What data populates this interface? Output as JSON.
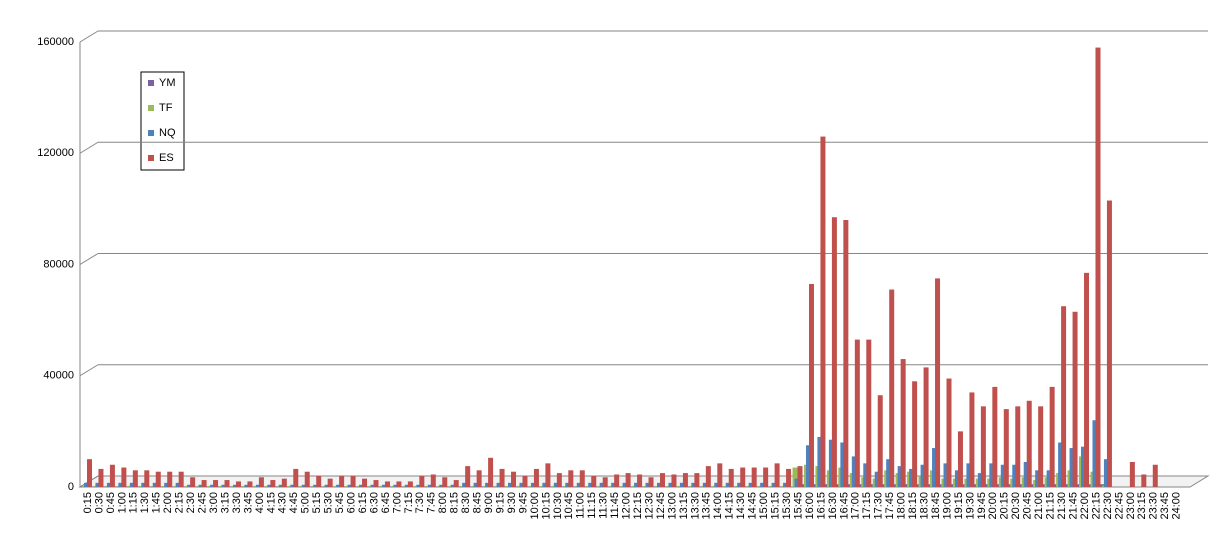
{
  "chart_data": {
    "type": "bar",
    "categories": [
      "0:15",
      "0:30",
      "0:45",
      "1:00",
      "1:15",
      "1:30",
      "1:45",
      "2:00",
      "2:15",
      "2:30",
      "2:45",
      "3:00",
      "3:15",
      "3:30",
      "3:45",
      "4:00",
      "4:15",
      "4:30",
      "4:45",
      "5:00",
      "5:15",
      "5:30",
      "5:45",
      "6:00",
      "6:15",
      "6:30",
      "6:45",
      "7:00",
      "7:15",
      "7:30",
      "7:45",
      "8:00",
      "8:15",
      "8:30",
      "8:45",
      "9:00",
      "9:15",
      "9:30",
      "9:45",
      "10:00",
      "10:15",
      "10:30",
      "10:45",
      "11:00",
      "11:15",
      "11:30",
      "11:45",
      "12:00",
      "12:15",
      "12:30",
      "12:45",
      "13:00",
      "13:15",
      "13:30",
      "13:45",
      "14:00",
      "14:15",
      "14:30",
      "14:45",
      "15:00",
      "15:15",
      "15:30",
      "15:45",
      "16:00",
      "16:15",
      "16:30",
      "16:45",
      "17:00",
      "17:15",
      "17:30",
      "17:45",
      "18:00",
      "18:15",
      "18:30",
      "18:45",
      "19:00",
      "19:15",
      "19:30",
      "19:45",
      "20:00",
      "20:15",
      "20:30",
      "20:45",
      "21:00",
      "21:15",
      "21:30",
      "21:45",
      "22:00",
      "22:15",
      "22:30",
      "22:45",
      "23:00",
      "23:15",
      "23:30",
      "23:45",
      "24:00"
    ],
    "series": [
      {
        "name": "YM",
        "color": "#7d60a0",
        "values": [
          200,
          200,
          200,
          200,
          200,
          200,
          200,
          200,
          200,
          200,
          200,
          200,
          200,
          200,
          200,
          200,
          200,
          200,
          200,
          200,
          200,
          200,
          200,
          200,
          200,
          200,
          200,
          200,
          200,
          200,
          200,
          200,
          200,
          200,
          200,
          200,
          200,
          200,
          200,
          200,
          200,
          200,
          200,
          200,
          200,
          200,
          200,
          200,
          200,
          200,
          200,
          200,
          200,
          200,
          200,
          200,
          200,
          200,
          200,
          200,
          200,
          200,
          200,
          1000,
          1000,
          1000,
          1000,
          1000,
          1000,
          1000,
          1000,
          1000,
          1000,
          1000,
          1000,
          1000,
          1000,
          1000,
          1000,
          1000,
          1000,
          1000,
          1000,
          1000,
          1000,
          1000,
          1000,
          1000,
          1000,
          1000,
          0,
          0,
          0,
          0,
          0,
          0
        ]
      },
      {
        "name": "TF",
        "color": "#9bbb59",
        "values": [
          400,
          400,
          400,
          400,
          400,
          400,
          400,
          400,
          400,
          400,
          400,
          400,
          400,
          400,
          400,
          400,
          400,
          400,
          400,
          400,
          400,
          400,
          400,
          400,
          400,
          400,
          400,
          400,
          400,
          400,
          400,
          400,
          400,
          400,
          400,
          400,
          400,
          400,
          400,
          400,
          400,
          400,
          400,
          400,
          400,
          400,
          400,
          400,
          400,
          400,
          400,
          400,
          400,
          400,
          400,
          400,
          400,
          400,
          400,
          400,
          400,
          400,
          7000,
          8000,
          7500,
          6000,
          7000,
          5000,
          3500,
          3000,
          6000,
          5000,
          5500,
          4000,
          6000,
          3000,
          3000,
          3000,
          3000,
          3000,
          3500,
          3000,
          3500,
          2500,
          3500,
          5000,
          6000,
          11000,
          5500,
          500,
          0,
          0,
          0,
          0,
          0,
          0
        ]
      },
      {
        "name": "NQ",
        "color": "#4f81bd",
        "values": [
          1500,
          1500,
          1500,
          1500,
          1500,
          1500,
          1500,
          1500,
          1500,
          800,
          800,
          800,
          800,
          800,
          800,
          800,
          800,
          800,
          800,
          800,
          800,
          800,
          800,
          800,
          800,
          800,
          800,
          800,
          800,
          800,
          800,
          800,
          800,
          1500,
          1500,
          1500,
          1500,
          1500,
          1500,
          1500,
          1500,
          1500,
          1500,
          1500,
          1500,
          1500,
          1500,
          1500,
          1500,
          1500,
          1500,
          1500,
          1500,
          1500,
          1500,
          1500,
          1500,
          1500,
          1500,
          1500,
          1500,
          1500,
          3000,
          15000,
          18000,
          17000,
          16000,
          11000,
          8500,
          5500,
          10000,
          7500,
          6500,
          8000,
          14000,
          8500,
          6000,
          8500,
          5000,
          8500,
          8000,
          8000,
          9000,
          6000,
          6000,
          16000,
          14000,
          14500,
          24000,
          10000,
          0,
          0,
          0,
          0,
          0,
          0
        ]
      },
      {
        "name": "ES",
        "color": "#c0504d",
        "values": [
          10000,
          6500,
          8000,
          7000,
          6000,
          6000,
          5500,
          5500,
          5500,
          3500,
          2500,
          2500,
          2500,
          2000,
          2000,
          3500,
          2500,
          3000,
          6500,
          5500,
          4000,
          3000,
          4000,
          4000,
          3000,
          2500,
          2000,
          2000,
          2000,
          4000,
          4500,
          3500,
          2500,
          7500,
          6000,
          10500,
          6500,
          5500,
          4000,
          6500,
          8500,
          5000,
          6000,
          6000,
          4000,
          3500,
          4500,
          5000,
          4500,
          3500,
          5000,
          4500,
          5000,
          5000,
          7500,
          8500,
          6500,
          7000,
          7000,
          7000,
          8500,
          6500,
          7500,
          73000,
          126000,
          97000,
          96000,
          53000,
          53000,
          33000,
          71000,
          46000,
          38000,
          43000,
          75000,
          39000,
          20000,
          34000,
          29000,
          36000,
          28000,
          29000,
          31000,
          29000,
          36000,
          65000,
          63000,
          77000,
          158000,
          103000,
          0,
          9000,
          4500,
          8000,
          0,
          0
        ]
      }
    ],
    "ylim": [
      0,
      160000
    ],
    "yticks": [
      0,
      40000,
      80000,
      120000,
      160000
    ],
    "grid": true
  }
}
